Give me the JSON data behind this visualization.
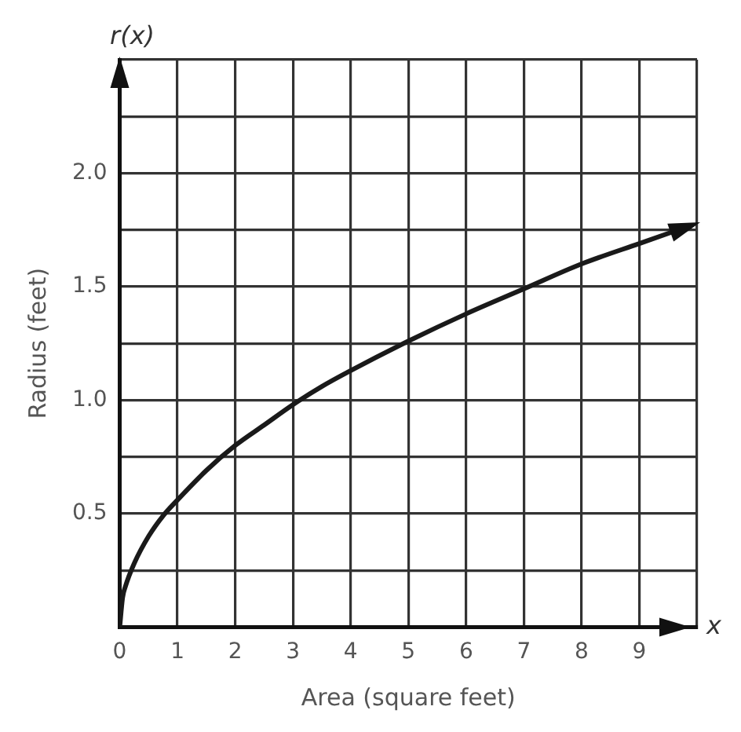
{
  "chart_data": {
    "type": "line",
    "xlabel": "Area (square feet)",
    "ylabel": "Radius (feet)",
    "annotations": [
      "r(x)",
      "x"
    ],
    "x": [
      0,
      0.05,
      0.1,
      0.25,
      0.5,
      0.75,
      1,
      1.5,
      2,
      2.5,
      3,
      3.5,
      4,
      5,
      6,
      7,
      8,
      9,
      9.9
    ],
    "series": [
      {
        "color": "#1a1a1a",
        "values": [
          0,
          0.13,
          0.18,
          0.28,
          0.4,
          0.49,
          0.56,
          0.69,
          0.8,
          0.89,
          0.98,
          1.06,
          1.13,
          1.26,
          1.38,
          1.49,
          1.6,
          1.69,
          1.77
        ]
      }
    ],
    "xlim": [
      0,
      10
    ],
    "ylim": [
      0,
      2.5
    ],
    "xticks": [
      0,
      1,
      2,
      3,
      4,
      5,
      6,
      7,
      8,
      9,
      {
        "value": 10,
        "label": null
      }
    ],
    "yticks": [
      {
        "value": 0,
        "label": null
      },
      {
        "value": 0.25,
        "label": null
      },
      {
        "value": 0.5,
        "label": "0.5"
      },
      {
        "value": 0.75,
        "label": null
      },
      {
        "value": 1,
        "label": "1.0"
      },
      {
        "value": 1.25,
        "label": null
      },
      {
        "value": 1.5,
        "label": "1.5"
      },
      {
        "value": 1.75,
        "label": null
      },
      {
        "value": 2,
        "label": "2.0"
      },
      {
        "value": 2.25,
        "label": null
      },
      {
        "value": 2.5,
        "label": null
      }
    ],
    "grid": true,
    "legend": false,
    "marker": "none",
    "line_style": "solid"
  }
}
